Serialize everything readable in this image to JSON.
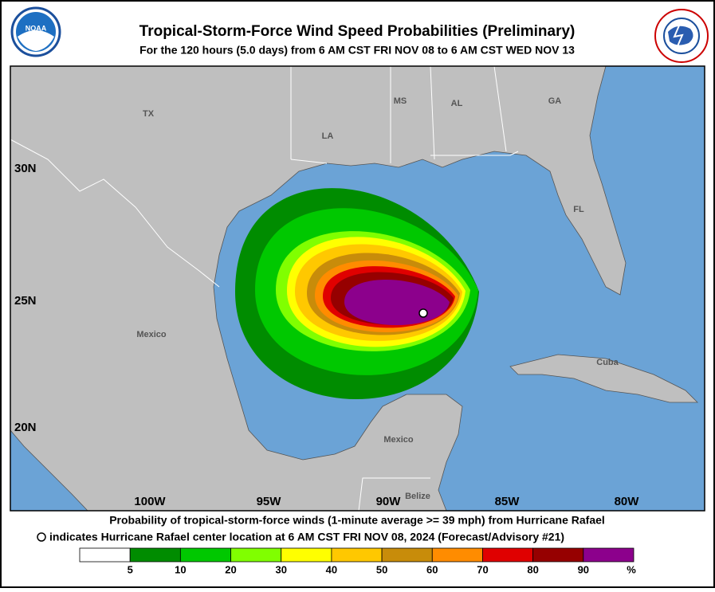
{
  "header": {
    "title": "Tropical-Storm-Force Wind Speed Probabilities (Preliminary)",
    "subtitle": "For the 120 hours (5.0 days) from 6 AM CST FRI NOV 08 to 6 AM CST WED NOV 13"
  },
  "map": {
    "places": [
      "TX",
      "LA",
      "MS",
      "AL",
      "GA",
      "FL",
      "Mexico",
      "Mexico",
      "Cuba",
      "Belize"
    ],
    "lat_labels": [
      "30N",
      "25N",
      "20N"
    ],
    "lon_labels": [
      "100W",
      "95W",
      "90W",
      "85W",
      "80W"
    ]
  },
  "footer": {
    "line1": "Probability of tropical-storm-force winds (1-minute average >= 39 mph) from Hurricane Rafael",
    "line2": "indicates Hurricane Rafael center location at 6 AM CST FRI NOV 08, 2024 (Forecast/Advisory #21)"
  },
  "legend": {
    "colors": [
      "#ffffff",
      "#008c00",
      "#00c800",
      "#80ff00",
      "#ffff00",
      "#ffc800",
      "#c88c0a",
      "#ff8c00",
      "#e00000",
      "#960000",
      "#8c008c"
    ],
    "ticks": [
      5,
      10,
      20,
      30,
      40,
      50,
      60,
      70,
      80,
      90
    ],
    "unit": "%"
  }
}
